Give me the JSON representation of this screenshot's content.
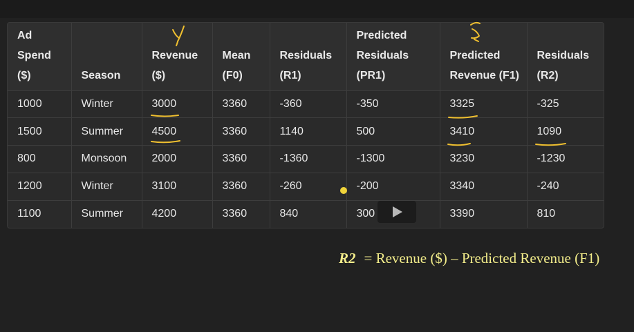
{
  "table": {
    "headers": [
      [
        "Ad",
        "Spend",
        "($)"
      ],
      [
        "",
        "",
        "Season"
      ],
      [
        "",
        "Revenue",
        "($)"
      ],
      [
        "",
        "Mean",
        "(F0)"
      ],
      [
        "",
        "Residuals",
        "(R1)"
      ],
      [
        "Predicted",
        "Residuals",
        "(PR1)"
      ],
      [
        "",
        "Predicted",
        "Revenue (F1)"
      ],
      [
        "",
        "Residuals",
        "(R2)"
      ]
    ],
    "rows": [
      [
        "1000",
        "Winter",
        "3000",
        "3360",
        "-360",
        "-350",
        "3325",
        "-325"
      ],
      [
        "1500",
        "Summer",
        "4500",
        "3360",
        "1140",
        "500",
        "3410",
        "1090"
      ],
      [
        "800",
        "Monsoon",
        "2000",
        "3360",
        "-1360",
        "-1300",
        "3230",
        "-1230"
      ],
      [
        "1200",
        "Winter",
        "3100",
        "3360",
        "-260",
        "-200",
        "3340",
        "-240"
      ],
      [
        "1100",
        "Summer",
        "4200",
        "3360",
        "840",
        "300",
        "3390",
        "810"
      ]
    ]
  },
  "formula": {
    "variable": "R2",
    "expression": "= Revenue ($) – Predicted Revenue (F1)"
  },
  "colors": {
    "background": "#212121",
    "table_background": "#2a2a2a",
    "annotation": "#f0c030",
    "formula_text": "#f2ec8a"
  },
  "icons": {
    "video_control": "play-icon",
    "pointer": "cursor-dot"
  }
}
